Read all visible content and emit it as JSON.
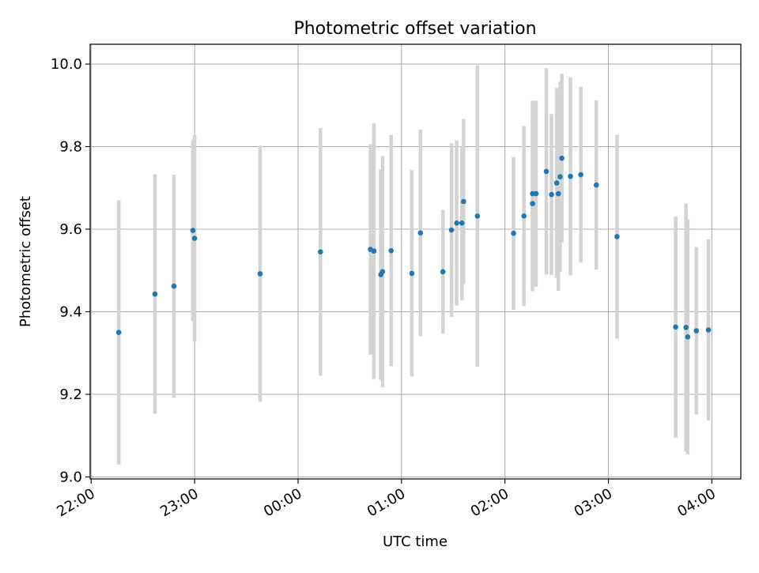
{
  "chart_data": {
    "type": "scatter",
    "title": "Photometric offset variation",
    "xlabel": "UTC time",
    "ylabel": "Photometric offset",
    "x_axis_type": "time",
    "xlim_hours": [
      -0.01,
      6.28
    ],
    "ylim": [
      8.995,
      10.048
    ],
    "x_ticks": [
      {
        "label": "22:00",
        "hours": 0
      },
      {
        "label": "23:00",
        "hours": 1
      },
      {
        "label": "00:00",
        "hours": 2
      },
      {
        "label": "01:00",
        "hours": 3
      },
      {
        "label": "02:00",
        "hours": 4
      },
      {
        "label": "03:00",
        "hours": 5
      },
      {
        "label": "04:00",
        "hours": 6
      }
    ],
    "y_ticks": [
      {
        "label": "9.0",
        "value": 9.0
      },
      {
        "label": "9.2",
        "value": 9.2
      },
      {
        "label": "9.4",
        "value": 9.4
      },
      {
        "label": "9.6",
        "value": 9.6
      },
      {
        "label": "9.8",
        "value": 9.8
      },
      {
        "label": "10.0",
        "value": 10.0
      }
    ],
    "grid": true,
    "marker_color": "#1f77b4",
    "errorbar_color": "#d3d3d3",
    "points": [
      {
        "time": "22:16",
        "y": 9.35,
        "err": 0.32
      },
      {
        "time": "22:37",
        "y": 9.443,
        "err": 0.29
      },
      {
        "time": "22:48",
        "y": 9.462,
        "err": 0.27
      },
      {
        "time": "22:59",
        "y": 9.597,
        "err": 0.22
      },
      {
        "time": "23:00",
        "y": 9.578,
        "err": 0.25
      },
      {
        "time": "23:38",
        "y": 9.492,
        "err": 0.31
      },
      {
        "time": "00:13",
        "y": 9.545,
        "err": 0.3
      },
      {
        "time": "00:42",
        "y": 9.551,
        "err": 0.255
      },
      {
        "time": "00:44",
        "y": 9.547,
        "err": 0.31
      },
      {
        "time": "00:48",
        "y": 9.49,
        "err": 0.255
      },
      {
        "time": "00:49",
        "y": 9.497,
        "err": 0.28
      },
      {
        "time": "00:54",
        "y": 9.548,
        "err": 0.28
      },
      {
        "time": "01:06",
        "y": 9.493,
        "err": 0.25
      },
      {
        "time": "01:11",
        "y": 9.591,
        "err": 0.25
      },
      {
        "time": "01:24",
        "y": 9.497,
        "err": 0.15
      },
      {
        "time": "01:29",
        "y": 9.598,
        "err": 0.21
      },
      {
        "time": "01:32",
        "y": 9.615,
        "err": 0.2
      },
      {
        "time": "01:35",
        "y": 9.615,
        "err": 0.187
      },
      {
        "time": "01:36",
        "y": 9.667,
        "err": 0.2
      },
      {
        "time": "01:44",
        "y": 9.632,
        "err": 0.365
      },
      {
        "time": "02:05",
        "y": 9.59,
        "err": 0.185
      },
      {
        "time": "02:11",
        "y": 9.632,
        "err": 0.218
      },
      {
        "time": "02:16",
        "y": 9.662,
        "err": 0.212
      },
      {
        "time": "02:16",
        "y": 9.686,
        "err": 0.225
      },
      {
        "time": "02:18",
        "y": 9.686,
        "err": 0.225
      },
      {
        "time": "02:24",
        "y": 9.74,
        "err": 0.25
      },
      {
        "time": "02:27",
        "y": 9.684,
        "err": 0.195
      },
      {
        "time": "02:30",
        "y": 9.712,
        "err": 0.23
      },
      {
        "time": "02:31",
        "y": 9.686,
        "err": 0.235
      },
      {
        "time": "02:32",
        "y": 9.727,
        "err": 0.23
      },
      {
        "time": "02:33",
        "y": 9.772,
        "err": 0.205
      },
      {
        "time": "02:38",
        "y": 9.728,
        "err": 0.24
      },
      {
        "time": "02:44",
        "y": 9.732,
        "err": 0.213
      },
      {
        "time": "02:53",
        "y": 9.707,
        "err": 0.205
      },
      {
        "time": "03:05",
        "y": 9.582,
        "err": 0.247
      },
      {
        "time": "03:39",
        "y": 9.363,
        "err": 0.268
      },
      {
        "time": "03:45",
        "y": 9.362,
        "err": 0.3
      },
      {
        "time": "03:46",
        "y": 9.339,
        "err": 0.285
      },
      {
        "time": "03:51",
        "y": 9.354,
        "err": 0.203
      },
      {
        "time": "03:58",
        "y": 9.356,
        "err": 0.219
      }
    ]
  }
}
